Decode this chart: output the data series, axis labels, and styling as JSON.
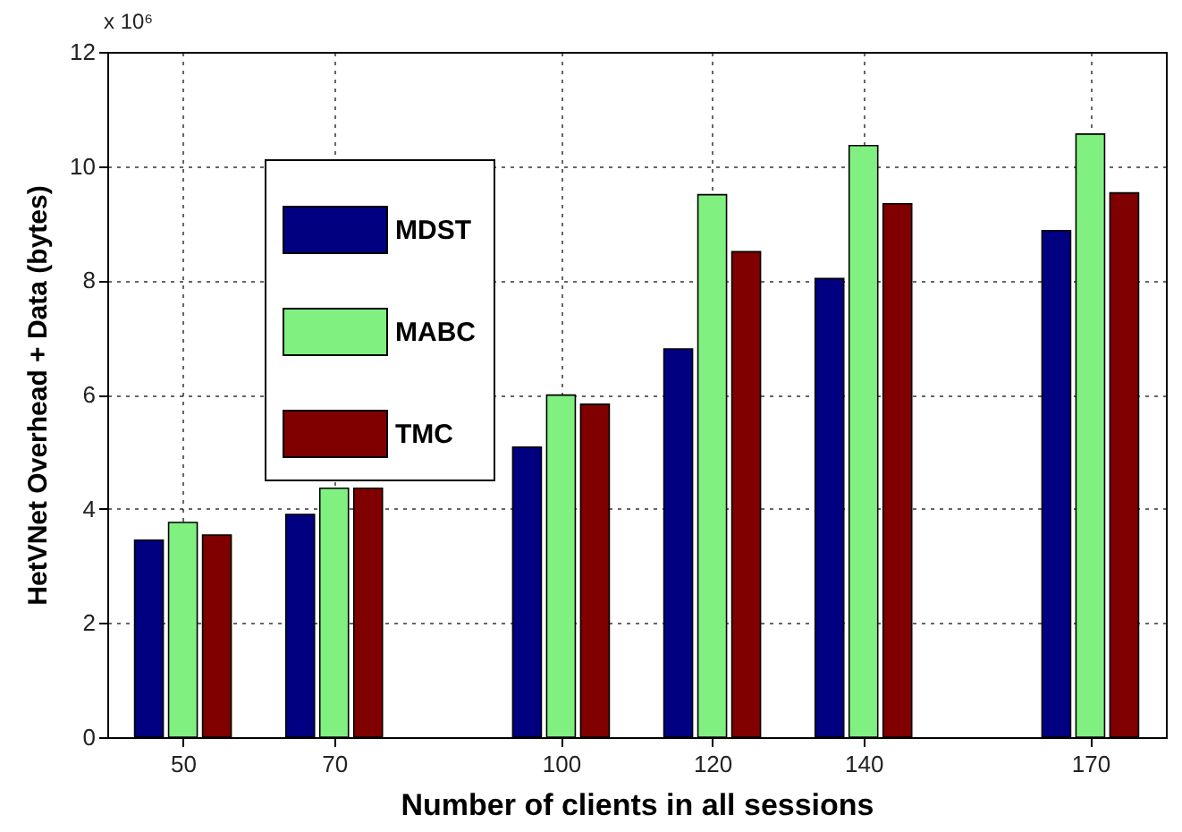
{
  "chart_data": {
    "type": "bar",
    "xlabel": "Number of clients in  all sessions",
    "ylabel": "HetVNet Overhead + Data (bytes)",
    "annotations": [
      "x 10⁶"
    ],
    "x": [
      50,
      70,
      100,
      120,
      140,
      170
    ],
    "series": [
      {
        "name": "MDST",
        "color": "#000080",
        "values": [
          3.45,
          3.9,
          5.08,
          6.8,
          8.03,
          8.87
        ]
      },
      {
        "name": "MABC",
        "color": "#80f080",
        "values": [
          3.76,
          4.36,
          5.99,
          9.5,
          10.36,
          10.56
        ]
      },
      {
        "name": "TMC",
        "color": "#800000",
        "values": [
          3.54,
          4.36,
          5.83,
          8.5,
          9.34,
          9.53
        ]
      }
    ],
    "xlim": [
      40,
      180
    ],
    "xticks": [
      50,
      70,
      100,
      120,
      140,
      170
    ],
    "ylim": [
      0,
      12
    ],
    "yticks": [
      0,
      2,
      4,
      6,
      8,
      10,
      12
    ],
    "grid": true,
    "legend": "top left"
  }
}
